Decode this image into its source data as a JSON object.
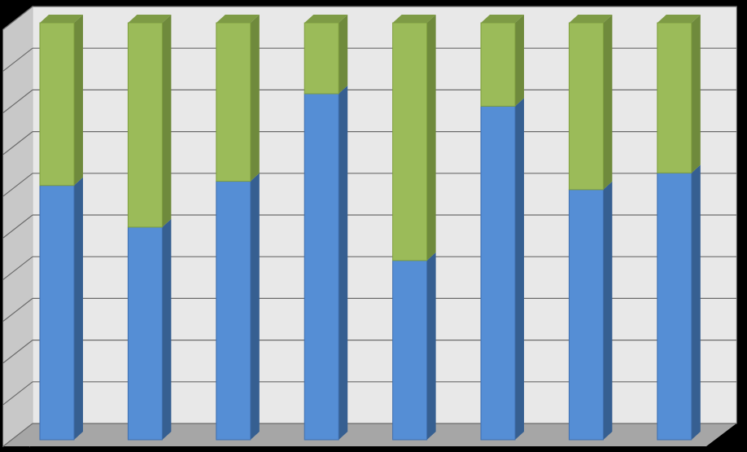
{
  "chart_data": {
    "type": "bar",
    "stacked": "percent",
    "three_d": true,
    "categories": [
      "",
      "",
      "",
      "",
      "",
      "",
      "",
      ""
    ],
    "series": [
      {
        "values": [
          61,
          51,
          62,
          83,
          43,
          80,
          60,
          64
        ]
      },
      {
        "values": [
          39,
          49,
          38,
          17,
          57,
          20,
          40,
          36
        ]
      }
    ],
    "title": "",
    "xlabel": "",
    "ylabel": "",
    "ylim": [
      0,
      100
    ],
    "grid": true,
    "legend": "none"
  },
  "colors": {
    "background": "#000000",
    "wall": "#e8e8e8",
    "side_wall": "#c8c8c8",
    "floor": "#a6a6a6",
    "gridline": "#6b6b6b",
    "series1_front": "#558ed5",
    "series1_side": "#365f91",
    "series1_top": "#6fa0de",
    "series2_front": "#9bbb59",
    "series2_side": "#6f8a3c",
    "series2_top": "#7e9b45"
  }
}
